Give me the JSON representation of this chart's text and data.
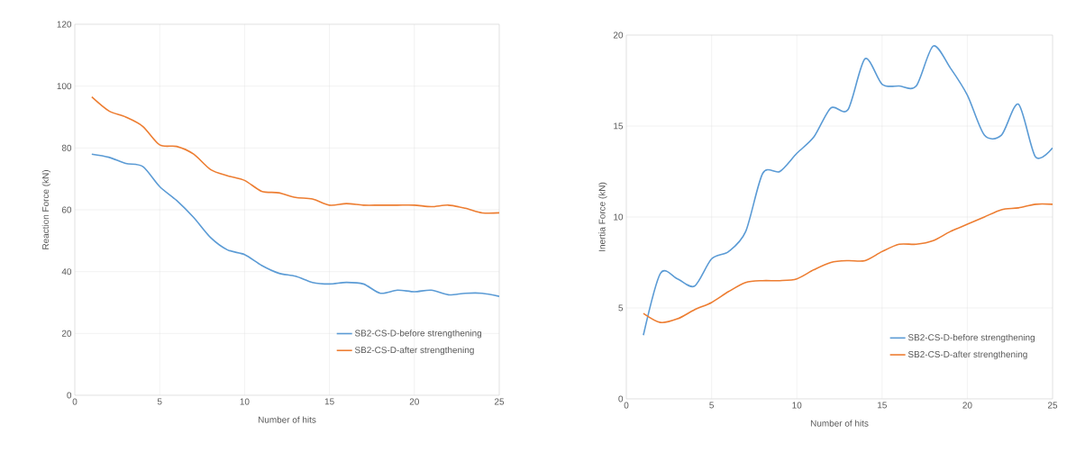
{
  "chart_data": [
    {
      "type": "line",
      "xlabel": "Number of hits",
      "ylabel": "Reaction Force (kN)",
      "x": [
        1,
        2,
        3,
        4,
        5,
        6,
        7,
        8,
        9,
        10,
        11,
        12,
        13,
        14,
        15,
        16,
        17,
        18,
        19,
        20,
        21,
        22,
        23,
        24,
        25
      ],
      "xlim": [
        0,
        25
      ],
      "xticks": [
        0,
        5,
        10,
        15,
        20,
        25
      ],
      "ylim": [
        0,
        120
      ],
      "yticks": [
        0,
        20,
        40,
        60,
        80,
        100,
        120
      ],
      "grid": true,
      "legend": "bottom right",
      "series": [
        {
          "name": "SB2-CS-D-before strengthening",
          "color": "#5b9bd5",
          "values": [
            78,
            77,
            75,
            74,
            67.5,
            63,
            57.5,
            51,
            47,
            45.5,
            42,
            39.5,
            38.5,
            36.5,
            36,
            36.5,
            36,
            33,
            34,
            33.5,
            34,
            32.5,
            33,
            33,
            32
          ]
        },
        {
          "name": "SB2-CS-D-after strengthening",
          "color": "#ed7d31",
          "values": [
            96.5,
            92,
            90,
            87,
            81,
            80.5,
            78,
            73,
            71,
            69.5,
            66,
            65.5,
            64,
            63.5,
            61.5,
            62,
            61.5,
            61.5,
            61.5,
            61.5,
            61,
            61.5,
            60.5,
            59,
            59
          ]
        }
      ]
    },
    {
      "type": "line",
      "xlabel": "Number of hits",
      "ylabel": "Inertia Force (kN)",
      "x": [
        1,
        2,
        3,
        4,
        5,
        6,
        7,
        8,
        9,
        10,
        11,
        12,
        13,
        14,
        15,
        16,
        17,
        18,
        19,
        20,
        21,
        22,
        23,
        24,
        25
      ],
      "xlim": [
        0,
        25
      ],
      "xticks": [
        0,
        5,
        10,
        15,
        20,
        25
      ],
      "ylim": [
        0,
        20
      ],
      "yticks": [
        0,
        5,
        10,
        15,
        20
      ],
      "grid": true,
      "legend": "bottom right",
      "series": [
        {
          "name": "SB2-CS-D-before strengthening",
          "color": "#5b9bd5",
          "values": [
            3.5,
            6.9,
            6.6,
            6.2,
            7.7,
            8.1,
            9.2,
            12.4,
            12.5,
            13.5,
            14.4,
            16.0,
            15.9,
            18.7,
            17.3,
            17.2,
            17.2,
            19.4,
            18.2,
            16.7,
            14.5,
            14.5,
            16.2,
            13.3,
            13.8
          ]
        },
        {
          "name": "SB2-CS-D-after strengthening",
          "color": "#ed7d31",
          "values": [
            4.7,
            4.2,
            4.4,
            4.9,
            5.3,
            5.9,
            6.4,
            6.5,
            6.5,
            6.6,
            7.1,
            7.5,
            7.6,
            7.6,
            8.1,
            8.5,
            8.5,
            8.7,
            9.2,
            9.6,
            10.0,
            10.4,
            10.5,
            10.7,
            10.7
          ]
        }
      ]
    }
  ]
}
